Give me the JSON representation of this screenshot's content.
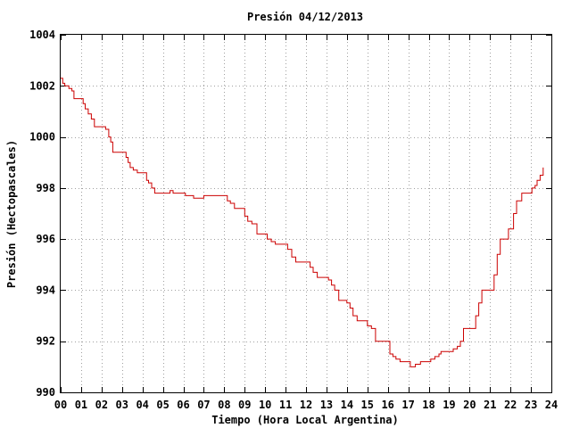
{
  "chart_data": {
    "type": "line",
    "title": "Presión 04/12/2013",
    "xlabel": "Tiempo (Hora Local Argentina)",
    "ylabel": "Presión (Hectopascales)",
    "xlim": [
      0,
      24
    ],
    "ylim": [
      990,
      1004
    ],
    "x_ticks": [
      0,
      1,
      2,
      3,
      4,
      5,
      6,
      7,
      8,
      9,
      10,
      11,
      12,
      13,
      14,
      15,
      16,
      17,
      18,
      19,
      20,
      21,
      22,
      23,
      24
    ],
    "x_tick_labels": [
      "00",
      "01",
      "02",
      "03",
      "04",
      "05",
      "06",
      "07",
      "08",
      "09",
      "10",
      "11",
      "12",
      "13",
      "14",
      "15",
      "16",
      "17",
      "18",
      "19",
      "20",
      "21",
      "22",
      "23",
      "24"
    ],
    "y_ticks": [
      990,
      992,
      994,
      996,
      998,
      1000,
      1002,
      1004
    ],
    "y_tick_labels": [
      "990",
      "992",
      "994",
      "996",
      "998",
      "1000",
      "1002",
      "1004"
    ],
    "grid": true,
    "line_color": "#cc0000",
    "line_style": "step",
    "series": [
      {
        "x": [
          0.0,
          0.1,
          0.2,
          0.4,
          0.55,
          0.65,
          1.1,
          1.2,
          1.35,
          1.5,
          1.65,
          1.8,
          2.2,
          2.35,
          2.45,
          2.55,
          3.2,
          3.3,
          3.4,
          3.55,
          3.75,
          4.2,
          4.3,
          4.45,
          4.6,
          5.35,
          5.5,
          6.1,
          6.5,
          7.0,
          8.0,
          8.15,
          8.3,
          8.5,
          9.0,
          9.15,
          9.35,
          9.6,
          10.1,
          10.3,
          10.5,
          11.1,
          11.3,
          11.5,
          11.75,
          12.2,
          12.35,
          12.55,
          13.1,
          13.25,
          13.4,
          13.6,
          14.0,
          14.15,
          14.3,
          14.5,
          15.0,
          15.2,
          15.4,
          16.1,
          16.25,
          16.4,
          16.6,
          16.9,
          17.1,
          17.35,
          17.6,
          18.1,
          18.3,
          18.5,
          18.6,
          19.2,
          19.4,
          19.55,
          19.7,
          20.15,
          20.3,
          20.45,
          20.6,
          21.0,
          21.1,
          21.2,
          21.35,
          21.5,
          21.9,
          22.0,
          22.15,
          22.3,
          22.55,
          23.05,
          23.2,
          23.3,
          23.45,
          23.6
        ],
        "y": [
          1002.3,
          1002.1,
          1002.0,
          1001.9,
          1001.8,
          1001.5,
          1001.3,
          1001.1,
          1000.9,
          1000.7,
          1000.4,
          1000.4,
          1000.3,
          1000.0,
          999.8,
          999.4,
          999.2,
          999.0,
          998.8,
          998.7,
          998.6,
          998.3,
          998.2,
          998.0,
          997.8,
          997.9,
          997.8,
          997.7,
          997.6,
          997.7,
          997.7,
          997.5,
          997.4,
          997.2,
          996.9,
          996.7,
          996.6,
          996.2,
          996.0,
          995.9,
          995.8,
          995.6,
          995.3,
          995.1,
          995.1,
          994.9,
          994.7,
          994.5,
          994.4,
          994.2,
          994.0,
          993.6,
          993.5,
          993.3,
          993.0,
          992.8,
          992.6,
          992.5,
          992.0,
          991.5,
          991.4,
          991.3,
          991.2,
          991.2,
          991.0,
          991.1,
          991.2,
          991.3,
          991.4,
          991.5,
          991.6,
          991.7,
          991.8,
          992.0,
          992.5,
          992.5,
          993.0,
          993.5,
          994.0,
          994.0,
          994.0,
          994.6,
          995.4,
          996.0,
          996.4,
          996.4,
          997.0,
          997.5,
          997.8,
          998.0,
          998.1,
          998.3,
          998.5,
          998.8
        ]
      }
    ]
  }
}
